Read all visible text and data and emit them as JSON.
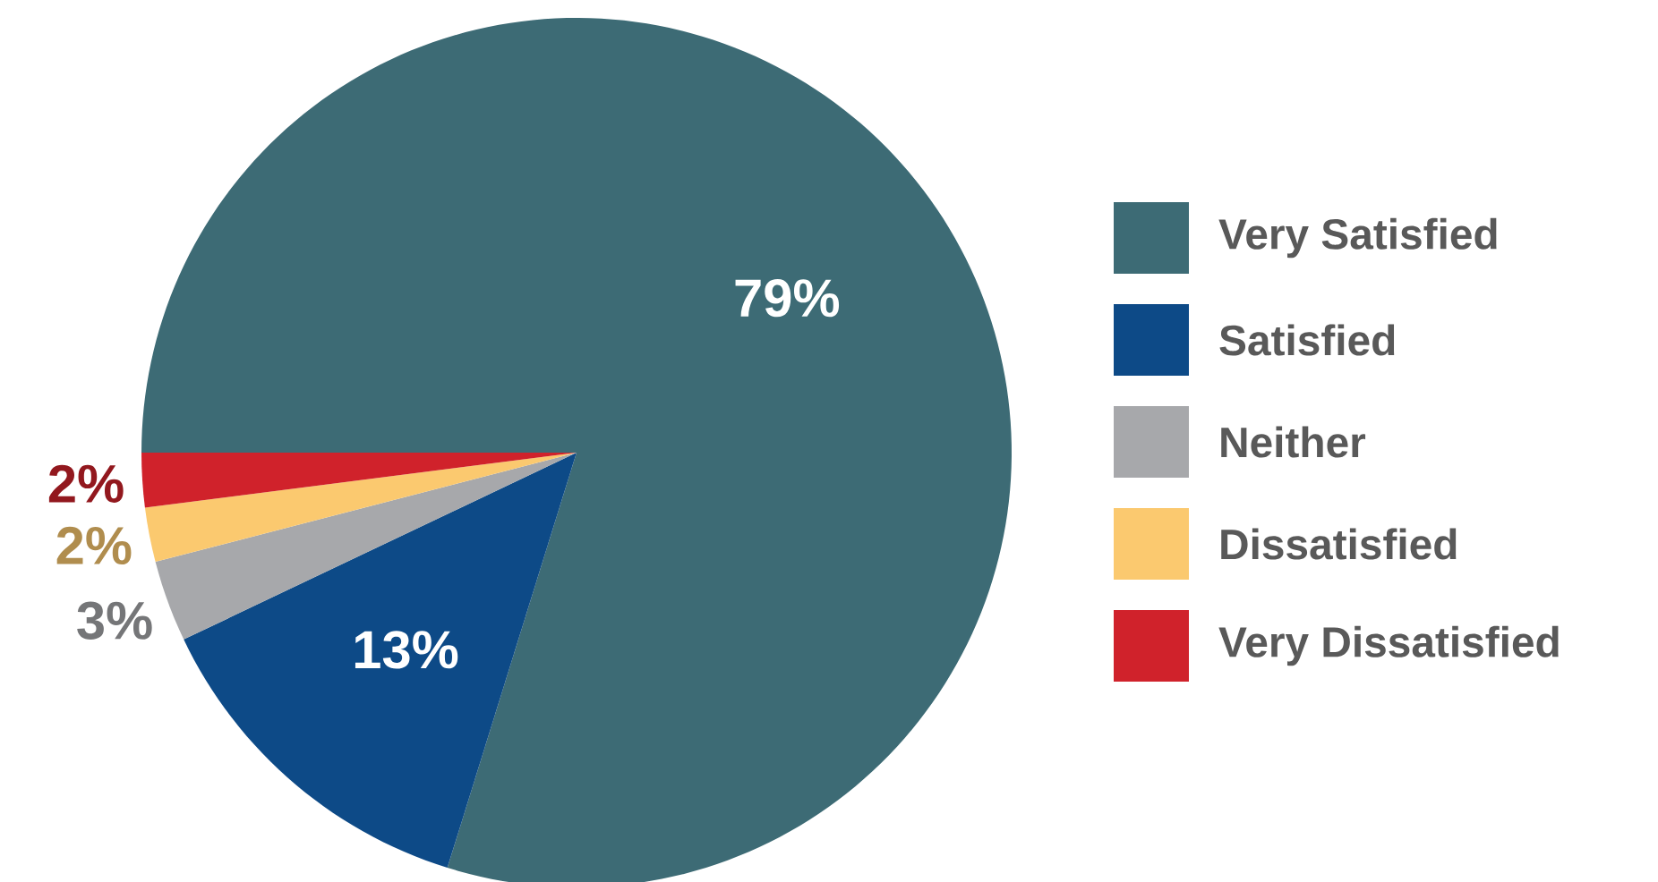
{
  "chart_data": {
    "type": "pie",
    "categories": [
      "Very Satisfied",
      "Satisfied",
      "Neither",
      "Dissatisfied",
      "Very Dissatisfied"
    ],
    "values": [
      79,
      13,
      3,
      2,
      2
    ],
    "value_labels": [
      "79%",
      "13%",
      "3%",
      "2%",
      "2%"
    ],
    "colors": [
      "#3d6b75",
      "#0d4a87",
      "#a7a8ab",
      "#fbc96f",
      "#d0222b"
    ],
    "legend": "right"
  }
}
